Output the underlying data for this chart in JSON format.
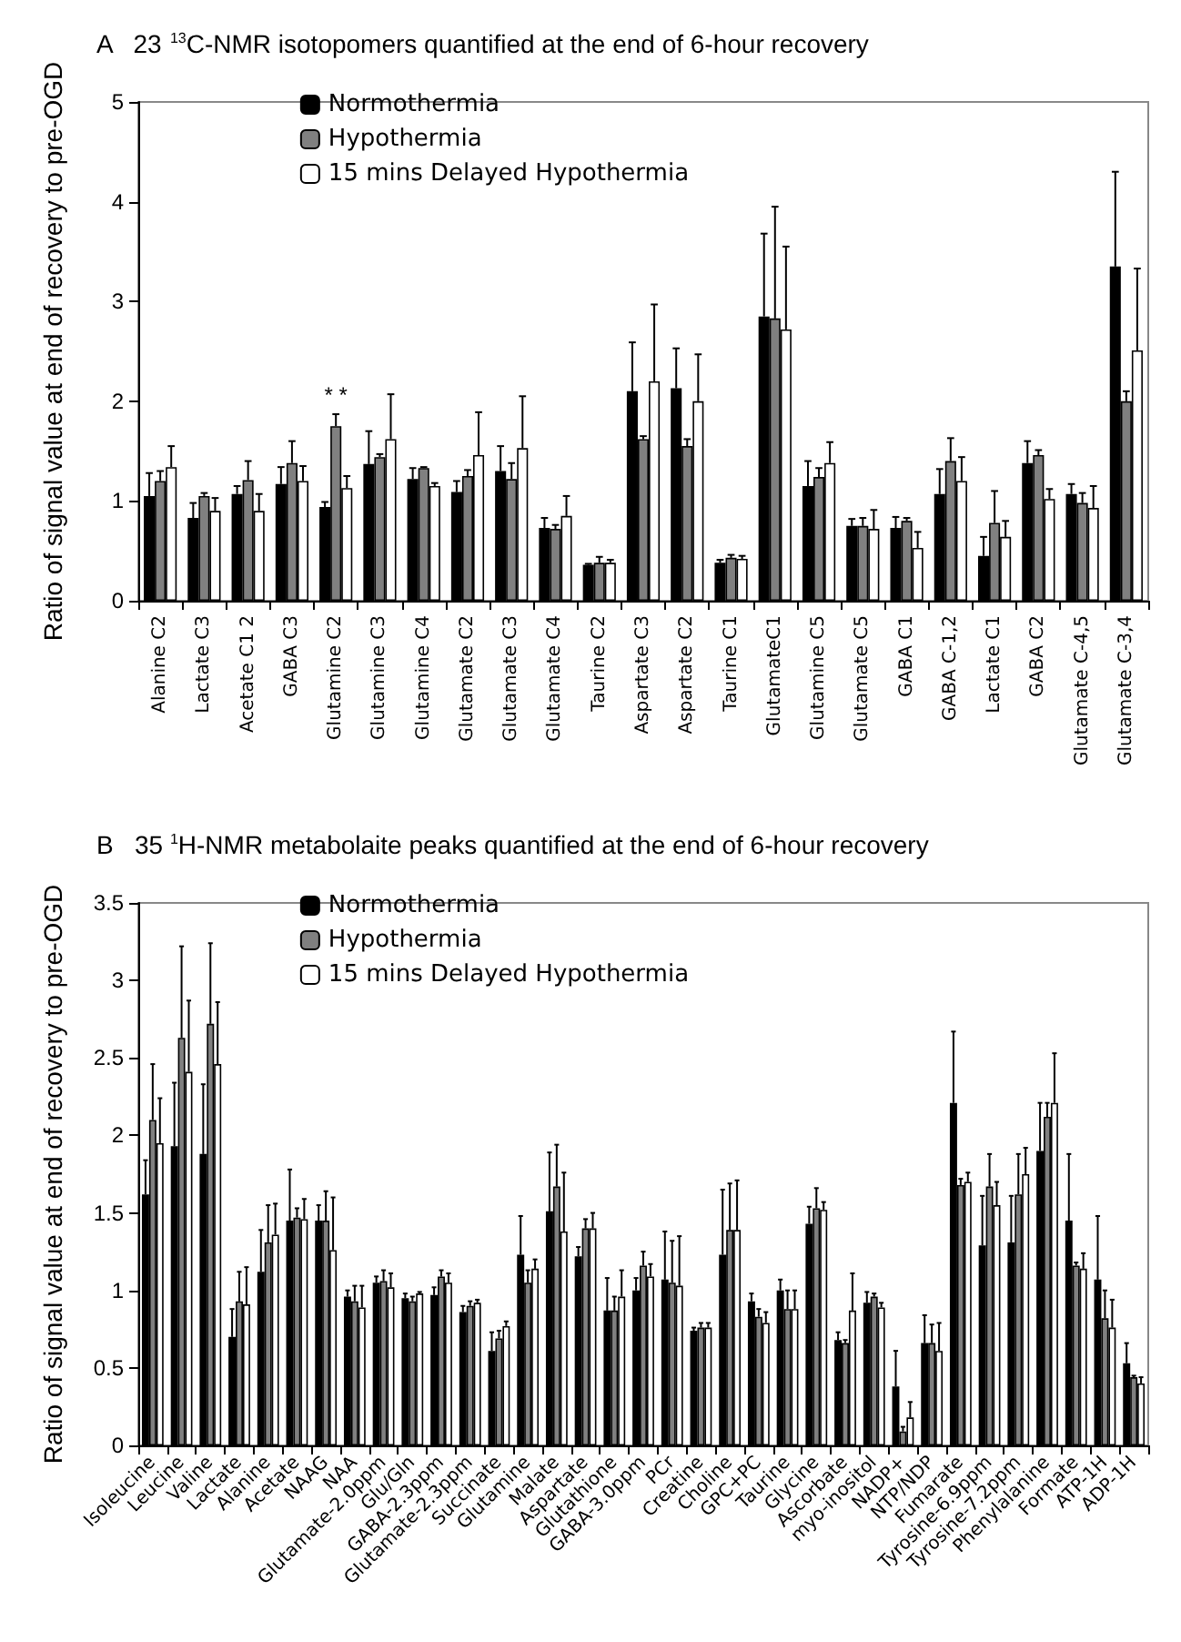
{
  "chart_data": [
    {
      "type": "bar",
      "title": "A   23 $^{13}$C-NMR isotopomers quantified at the end of 6-hour recovery",
      "ylabel": "Ratio of signal value at end of recovery to pre-OGD",
      "categories": [
        "Alanine C2",
        "Lactate C3",
        "Acetate C1 2",
        "GABA C3",
        "Glutamine C2",
        "Glutamine C3",
        "Glutamine C4",
        "Glutamate C2",
        "Glutamate C3",
        "Glutamate C4",
        "Taurine C2",
        "Aspartate C3",
        "Aspartate C2",
        "Taurine C1",
        "GlutamateC1",
        "Glutamine C5",
        "Glutamate C5",
        "GABA C1",
        "GABA C-1,2",
        "Lactate C1",
        "GABA C2",
        "Glutamate C-4,5",
        "Glutamate C-3,4"
      ],
      "series": [
        {
          "name": "Normothermia",
          "color": "#000000",
          "values": [
            1.05,
            0.83,
            1.07,
            1.17,
            0.94,
            1.37,
            1.22,
            1.09,
            1.3,
            0.73,
            0.36,
            2.1,
            2.13,
            0.38,
            2.85,
            1.15,
            0.75,
            0.73,
            1.07,
            0.45,
            1.38,
            1.07,
            3.35
          ],
          "errors": [
            [
              1.05,
              1.28
            ],
            [
              0.83,
              0.98
            ],
            [
              1.07,
              1.15
            ],
            [
              1.17,
              1.34
            ],
            [
              0.94,
              0.99
            ],
            [
              1.37,
              1.7
            ],
            [
              1.22,
              1.33
            ],
            [
              1.09,
              1.2
            ],
            [
              1.3,
              1.55
            ],
            [
              0.73,
              0.83
            ],
            [
              0.36,
              0.37
            ],
            [
              2.1,
              2.59
            ],
            [
              2.13,
              2.53
            ],
            [
              0.38,
              0.41
            ],
            [
              2.85,
              3.68
            ],
            [
              1.15,
              1.4
            ],
            [
              0.75,
              0.82
            ],
            [
              0.73,
              0.84
            ],
            [
              1.07,
              1.32
            ],
            [
              0.45,
              0.64
            ],
            [
              1.38,
              1.6
            ],
            [
              1.07,
              1.17
            ],
            [
              3.35,
              4.3
            ]
          ]
        },
        {
          "name": "Hypothermia",
          "color": "#808080",
          "values": [
            1.2,
            1.05,
            1.21,
            1.38,
            1.75,
            1.44,
            1.33,
            1.25,
            1.22,
            0.72,
            0.38,
            1.62,
            1.55,
            0.43,
            2.83,
            1.24,
            0.75,
            0.8,
            1.4,
            0.78,
            1.46,
            0.98,
            2.0
          ],
          "errors": [
            [
              1.2,
              1.3
            ],
            [
              1.05,
              1.08
            ],
            [
              1.21,
              1.4
            ],
            [
              1.38,
              1.6
            ],
            [
              1.75,
              1.87
            ],
            [
              1.44,
              1.47
            ],
            [
              1.33,
              1.34
            ],
            [
              1.25,
              1.31
            ],
            [
              1.22,
              1.38
            ],
            [
              0.72,
              0.76
            ],
            [
              0.38,
              0.44
            ],
            [
              1.62,
              1.65
            ],
            [
              1.55,
              1.62
            ],
            [
              0.43,
              0.46
            ],
            [
              2.83,
              3.95
            ],
            [
              1.24,
              1.33
            ],
            [
              0.75,
              0.83
            ],
            [
              0.8,
              0.83
            ],
            [
              1.4,
              1.63
            ],
            [
              0.78,
              1.1
            ],
            [
              1.46,
              1.51
            ],
            [
              0.98,
              1.08
            ],
            [
              2.0,
              2.1
            ]
          ]
        },
        {
          "name": "15 mins Delayed Hypothermia",
          "color": "#ffffff",
          "values": [
            1.34,
            0.9,
            0.9,
            1.2,
            1.13,
            1.62,
            1.15,
            1.46,
            1.53,
            0.85,
            0.38,
            2.2,
            2.0,
            0.42,
            2.72,
            1.38,
            0.72,
            0.53,
            1.2,
            0.64,
            1.02,
            0.93,
            2.51
          ],
          "errors": [
            [
              1.34,
              1.55
            ],
            [
              0.9,
              1.03
            ],
            [
              0.9,
              1.07
            ],
            [
              1.2,
              1.35
            ],
            [
              1.13,
              1.25
            ],
            [
              1.62,
              2.07
            ],
            [
              1.15,
              1.18
            ],
            [
              1.46,
              1.89
            ],
            [
              1.53,
              2.05
            ],
            [
              0.85,
              1.05
            ],
            [
              0.38,
              0.41
            ],
            [
              2.2,
              2.97
            ],
            [
              2.0,
              2.47
            ],
            [
              0.42,
              0.45
            ],
            [
              2.72,
              3.55
            ],
            [
              1.38,
              1.59
            ],
            [
              0.72,
              0.91
            ],
            [
              0.53,
              0.69
            ],
            [
              1.2,
              1.44
            ],
            [
              0.64,
              0.8
            ],
            [
              1.02,
              1.12
            ],
            [
              0.93,
              1.15
            ],
            [
              2.51,
              3.33
            ]
          ]
        }
      ],
      "ylim": [
        0,
        5
      ],
      "yticks": [
        0,
        1,
        2,
        3,
        4,
        5
      ],
      "grid": false,
      "legend": "top left",
      "annotations": [
        {
          "text": "* *",
          "x": "Glutamine C2",
          "y": 1.95
        }
      ]
    },
    {
      "type": "bar",
      "title": "B   35 $^{1}$H-NMR metabolaite peaks quantified at the end of 6-hour recovery",
      "ylabel": "Ratio of signal value at end of recovery to pre-OGD",
      "categories": [
        "Isoleucine",
        "Leucine",
        "Valine",
        "Lactate",
        "Alanine",
        "Acetate",
        "NAAG",
        "NAA",
        "Glutamate-2.0ppm",
        "Glu/Gln",
        "GABA-2.3ppm",
        "Glutamate-2.3ppm",
        "Succinate",
        "Glutamine",
        "Malate",
        "Aspartate",
        "Glutathione",
        "GABA-3.0ppm",
        "PCr",
        "Creatine",
        "Choline",
        "GPC+PC",
        "Taurine",
        "Glycine",
        "Ascorbate",
        "myo-inositol",
        "NADP+",
        "NTP/NDP",
        "Fumarate",
        "Tyrosine-6.9ppm",
        "Tyrosine-7.2ppm",
        "Phenylalanine",
        "Formate",
        "ATP-1H",
        "ADP-1H"
      ],
      "series": [
        {
          "name": "Normothermia",
          "color": "#000000",
          "values": [
            1.62,
            1.93,
            1.88,
            0.7,
            1.12,
            1.45,
            1.45,
            0.96,
            1.05,
            0.95,
            0.97,
            0.86,
            0.61,
            1.23,
            1.51,
            1.22,
            0.87,
            1.0,
            1.07,
            0.74,
            1.23,
            0.93,
            1.0,
            1.43,
            0.68,
            0.92,
            0.38,
            0.66,
            2.21,
            1.29,
            1.31,
            1.9,
            1.45,
            1.07,
            0.53
          ],
          "errors": [
            [
              1.62,
              1.84
            ],
            [
              1.93,
              2.34
            ],
            [
              1.88,
              2.33
            ],
            [
              0.7,
              0.88
            ],
            [
              1.12,
              1.39
            ],
            [
              1.45,
              1.78
            ],
            [
              1.45,
              1.55
            ],
            [
              0.96,
              1.0
            ],
            [
              1.05,
              1.09
            ],
            [
              0.95,
              0.98
            ],
            [
              0.97,
              1.02
            ],
            [
              0.86,
              0.9
            ],
            [
              0.61,
              0.73
            ],
            [
              1.23,
              1.48
            ],
            [
              1.51,
              1.89
            ],
            [
              1.22,
              1.28
            ],
            [
              0.87,
              1.08
            ],
            [
              1.0,
              1.08
            ],
            [
              1.07,
              1.38
            ],
            [
              0.74,
              0.76
            ],
            [
              1.23,
              1.65
            ],
            [
              0.93,
              0.98
            ],
            [
              1.0,
              1.07
            ],
            [
              1.43,
              1.54
            ],
            [
              0.68,
              0.73
            ],
            [
              0.92,
              0.99
            ],
            [
              0.38,
              0.61
            ],
            [
              0.66,
              0.84
            ],
            [
              2.21,
              2.67
            ],
            [
              1.29,
              1.61
            ],
            [
              1.31,
              1.61
            ],
            [
              1.9,
              2.21
            ],
            [
              1.45,
              1.88
            ],
            [
              1.07,
              1.48
            ],
            [
              0.53,
              0.66
            ]
          ]
        },
        {
          "name": "Hypothermia",
          "color": "#808080",
          "values": [
            2.1,
            2.63,
            2.72,
            0.93,
            1.31,
            1.47,
            1.45,
            0.93,
            1.06,
            0.93,
            1.09,
            0.9,
            0.69,
            1.05,
            1.67,
            1.4,
            0.87,
            1.16,
            1.05,
            0.76,
            1.39,
            0.83,
            0.88,
            1.53,
            0.66,
            0.96,
            0.09,
            0.66,
            1.68,
            1.67,
            1.62,
            2.12,
            1.16,
            0.82,
            0.44
          ],
          "errors": [
            [
              2.1,
              2.46
            ],
            [
              2.63,
              3.22
            ],
            [
              2.72,
              3.24
            ],
            [
              0.93,
              1.12
            ],
            [
              1.31,
              1.55
            ],
            [
              1.47,
              1.53
            ],
            [
              1.45,
              1.64
            ],
            [
              0.93,
              1.03
            ],
            [
              1.06,
              1.13
            ],
            [
              0.93,
              0.96
            ],
            [
              1.09,
              1.13
            ],
            [
              0.9,
              0.93
            ],
            [
              0.69,
              0.74
            ],
            [
              1.05,
              1.13
            ],
            [
              1.67,
              1.94
            ],
            [
              1.4,
              1.46
            ],
            [
              0.87,
              0.96
            ],
            [
              1.16,
              1.25
            ],
            [
              1.05,
              1.32
            ],
            [
              0.76,
              0.79
            ],
            [
              1.39,
              1.69
            ],
            [
              0.83,
              0.88
            ],
            [
              0.88,
              1.0
            ],
            [
              1.53,
              1.66
            ],
            [
              0.66,
              0.68
            ],
            [
              0.96,
              0.98
            ],
            [
              0.09,
              0.12
            ],
            [
              0.66,
              0.78
            ],
            [
              1.68,
              1.72
            ],
            [
              1.67,
              1.88
            ],
            [
              1.62,
              1.88
            ],
            [
              2.12,
              2.21
            ],
            [
              1.16,
              1.18
            ],
            [
              0.82,
              1.0
            ],
            [
              0.44,
              0.45
            ]
          ]
        },
        {
          "name": "15 mins Delayed Hypothermia",
          "color": "#ffffff",
          "values": [
            1.95,
            2.41,
            2.46,
            0.91,
            1.36,
            1.46,
            1.26,
            0.89,
            1.02,
            0.98,
            1.05,
            0.92,
            0.77,
            1.14,
            1.38,
            1.4,
            0.96,
            1.09,
            1.03,
            0.76,
            1.39,
            0.79,
            0.88,
            1.52,
            0.87,
            0.89,
            0.18,
            0.61,
            1.7,
            1.55,
            1.75,
            2.21,
            1.14,
            0.76,
            0.4
          ],
          "errors": [
            [
              1.95,
              2.24
            ],
            [
              2.41,
              2.87
            ],
            [
              2.46,
              2.86
            ],
            [
              0.91,
              1.15
            ],
            [
              1.36,
              1.56
            ],
            [
              1.46,
              1.59
            ],
            [
              1.26,
              1.6
            ],
            [
              0.89,
              1.03
            ],
            [
              1.02,
              1.11
            ],
            [
              0.98,
              0.99
            ],
            [
              1.05,
              1.11
            ],
            [
              0.92,
              0.94
            ],
            [
              0.77,
              0.8
            ],
            [
              1.14,
              1.2
            ],
            [
              1.38,
              1.76
            ],
            [
              1.4,
              1.5
            ],
            [
              0.96,
              1.13
            ],
            [
              1.09,
              1.17
            ],
            [
              1.03,
              1.35
            ],
            [
              0.76,
              0.79
            ],
            [
              1.39,
              1.71
            ],
            [
              0.79,
              0.86
            ],
            [
              0.88,
              1.0
            ],
            [
              1.52,
              1.57
            ],
            [
              0.87,
              1.11
            ],
            [
              0.89,
              0.92
            ],
            [
              0.18,
              0.28
            ],
            [
              0.61,
              0.79
            ],
            [
              1.7,
              1.76
            ],
            [
              1.55,
              1.7
            ],
            [
              1.75,
              1.92
            ],
            [
              2.21,
              2.53
            ],
            [
              1.14,
              1.24
            ],
            [
              0.76,
              0.94
            ],
            [
              0.4,
              0.44
            ]
          ]
        }
      ],
      "ylim": [
        0,
        3.5
      ],
      "yticks": [
        0,
        0.5,
        1,
        1.5,
        2,
        2.5,
        3,
        3.5
      ],
      "grid": false,
      "legend": "top left"
    }
  ]
}
